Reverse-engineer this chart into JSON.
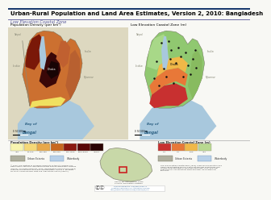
{
  "title": "Urban-Rural Population and Land Area Estimates, Version 2, 2010: Bangladesh",
  "subtitle": "Low Elevation Coastal Zone",
  "map1_title": "Population Density (per km²)",
  "map2_title": "Low Elevation Coastal Zone (m)",
  "title_bg": "#ffffff",
  "title_border": "#1a3a6e",
  "subtitle_color": "#555599",
  "map_bg_left": "#cdd9c5",
  "map_bg_right": "#cdd9c5",
  "water_color": "#a8c8dd",
  "bay_label_color": "#336688",
  "neighbor_color": "#888877",
  "legend_bg": "#f8f8f4",
  "legend1_title": "Population Density (per km²)",
  "legend1_colors": [
    "#f7f4b0",
    "#f5d878",
    "#e8a84a",
    "#c86820",
    "#8b1a10",
    "#5a0808",
    "#2a0404"
  ],
  "legend1_labels": [
    "<50",
    "50-100",
    "100-250",
    "250-500",
    "500-1000",
    "1000-5000",
    ">5000"
  ],
  "legend2_title": "Low Elevation Coastal Zone (m)",
  "legend2_colors": [
    "#c83030",
    "#e87838",
    "#f0b848",
    "#b8d890"
  ],
  "legend2_labels": [
    "0-3",
    "4-7",
    "8-10",
    ">10"
  ],
  "urban_color": "#b0b0a0",
  "waterbody_color": "#b8d0e8",
  "inset_bg": "#d0e8f4",
  "inset_land": "#c8d8a8",
  "inset_box": "#cc2222",
  "footer_bg": "#f8f8f4",
  "sep_color": "#aaaaaa",
  "cc_border": "#cccccc"
}
